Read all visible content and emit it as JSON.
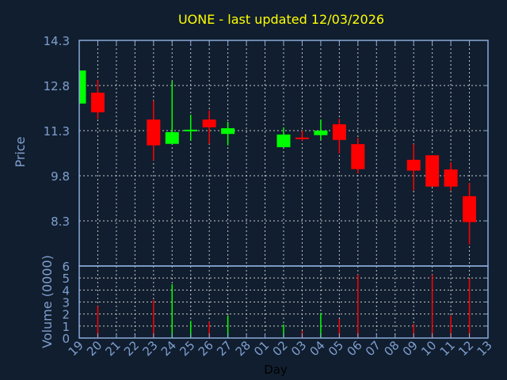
{
  "chart_data": {
    "type": "candlestick",
    "title": "UONE - last updated 12/03/2026",
    "xlabel": "Day",
    "ylabel": "Price",
    "volume_label": "Volume (0000)",
    "x_ticks": [
      "19",
      "20",
      "21",
      "22",
      "23",
      "24",
      "25",
      "26",
      "27",
      "28",
      "01",
      "02",
      "03",
      "04",
      "05",
      "06",
      "07",
      "08",
      "09",
      "10",
      "11",
      "12",
      "13"
    ],
    "price_ticks": [
      "14.3",
      "12.8",
      "11.3",
      "9.8",
      "8.3"
    ],
    "volume_ticks": [
      "0",
      "1",
      "2",
      "3",
      "4",
      "5",
      "6"
    ],
    "ylim": [
      6.8,
      14.3
    ],
    "volume_ylim": [
      0,
      6
    ],
    "grid": true,
    "colors": {
      "up": "#00ff00",
      "down": "#ff0000",
      "title": "#ffff00",
      "axis": "#8aaad8",
      "background": "#111e2f"
    },
    "candles": [
      {
        "day": "19",
        "open": 12.2,
        "high": 13.3,
        "low": 12.2,
        "close": 13.3,
        "volume": null
      },
      {
        "day": "20",
        "open": 12.56,
        "high": 12.98,
        "low": 11.69,
        "close": 11.91,
        "volume": 2.67
      },
      {
        "day": "23",
        "open": 11.67,
        "high": 12.3,
        "low": 10.31,
        "close": 10.81,
        "volume": 3.17
      },
      {
        "day": "24",
        "open": 10.86,
        "high": 12.94,
        "low": 10.86,
        "close": 11.25,
        "volume": 4.48
      },
      {
        "day": "25",
        "open": 11.3,
        "high": 11.83,
        "low": 10.97,
        "close": 11.33,
        "volume": 1.43
      },
      {
        "day": "26",
        "open": 11.67,
        "high": 11.97,
        "low": 10.86,
        "close": 11.41,
        "volume": 1.35
      },
      {
        "day": "27",
        "open": 11.19,
        "high": 11.59,
        "low": 10.81,
        "close": 11.38,
        "volume": 1.87
      },
      {
        "day": "02",
        "open": 10.75,
        "high": 11.41,
        "low": 10.75,
        "close": 11.17,
        "volume": 1.13
      },
      {
        "day": "03",
        "open": 11.07,
        "high": 11.3,
        "low": 10.97,
        "close": 11.02,
        "volume": 0.6
      },
      {
        "day": "04",
        "open": 11.15,
        "high": 11.67,
        "low": 10.99,
        "close": 11.3,
        "volume": 2.09
      },
      {
        "day": "05",
        "open": 11.51,
        "high": 11.69,
        "low": 10.54,
        "close": 10.99,
        "volume": 1.59
      },
      {
        "day": "06",
        "open": 10.85,
        "high": 11.06,
        "low": 9.88,
        "close": 10.02,
        "volume": 5.28
      },
      {
        "day": "09",
        "open": 10.33,
        "high": 10.85,
        "low": 9.31,
        "close": 9.97,
        "volume": 1.17
      },
      {
        "day": "10",
        "open": 10.48,
        "high": 10.48,
        "low": 9.44,
        "close": 9.44,
        "volume": 5.28
      },
      {
        "day": "11",
        "open": 10.01,
        "high": 10.25,
        "low": 9.31,
        "close": 9.44,
        "volume": 1.87
      },
      {
        "day": "12",
        "open": 9.12,
        "high": 9.56,
        "low": 7.52,
        "close": 8.26,
        "volume": 4.96
      }
    ]
  }
}
